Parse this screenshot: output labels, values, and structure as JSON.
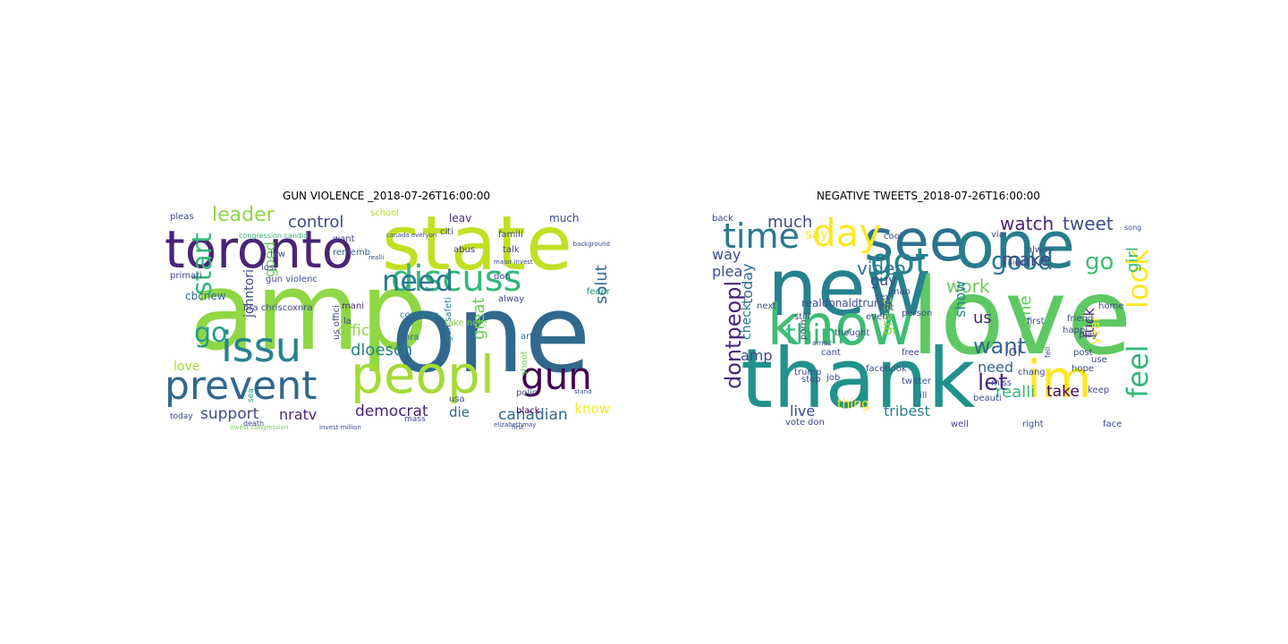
{
  "panels": [
    {
      "title": "GUN VIOLENCE _2018-07-26T16:00:00",
      "words": [
        {
          "text": "amp",
          "color": "#8fd744"
        },
        {
          "text": "one",
          "color": "#31688e"
        },
        {
          "text": "state",
          "color": "#c2df23"
        },
        {
          "text": "toronto",
          "color": "#482475"
        },
        {
          "text": "peopl",
          "color": "#a5db36"
        },
        {
          "text": "prevent",
          "color": "#31688e"
        },
        {
          "text": "discuss",
          "color": "#35b779"
        },
        {
          "text": "issu",
          "color": "#26828e"
        },
        {
          "text": "gun",
          "color": "#440154"
        },
        {
          "text": "need",
          "color": "#2a788e"
        },
        {
          "text": "start",
          "color": "#35b779"
        },
        {
          "text": "go",
          "color": "#1f9e89"
        },
        {
          "text": "leader",
          "color": "#8fd744"
        },
        {
          "text": "control",
          "color": "#3e4a89"
        },
        {
          "text": "good",
          "color": "#6ece58"
        },
        {
          "text": "support",
          "color": "#3e4a89"
        },
        {
          "text": "nratv",
          "color": "#482878"
        },
        {
          "text": "democrat",
          "color": "#482475"
        },
        {
          "text": "canadian",
          "color": "#31688e"
        },
        {
          "text": "solut",
          "color": "#31688e"
        },
        {
          "text": "great",
          "color": "#6ece58"
        },
        {
          "text": "dloesch",
          "color": "#26828e"
        },
        {
          "text": "offic",
          "color": "#8fd744"
        },
        {
          "text": "love",
          "color": "#a5db36"
        },
        {
          "text": "know",
          "color": "#fde725"
        },
        {
          "text": "die",
          "color": "#31688e"
        },
        {
          "text": "johntori",
          "color": "#3e4a89"
        },
        {
          "text": "cbcnew",
          "color": "#31688e"
        },
        {
          "text": "pleas",
          "color": "#3e4a89"
        },
        {
          "text": "primari",
          "color": "#3e4a89"
        },
        {
          "text": "school",
          "color": "#b5de2b"
        },
        {
          "text": "much",
          "color": "#3e4a89"
        },
        {
          "text": "leav",
          "color": "#482878"
        },
        {
          "text": "citi",
          "color": "#3e4a89"
        },
        {
          "text": "abus",
          "color": "#443983"
        },
        {
          "text": "want",
          "color": "#443983"
        },
        {
          "text": "famili",
          "color": "#3e4a89"
        },
        {
          "text": "law",
          "color": "#3e4a89"
        },
        {
          "text": "lost",
          "color": "#3e4a89"
        },
        {
          "text": "gun violenc",
          "color": "#3e4a89"
        },
        {
          "text": "rememb",
          "color": "#31688e"
        },
        {
          "text": "nra chriscoxnra",
          "color": "#3e4a89"
        },
        {
          "text": "mani",
          "color": "#482878"
        },
        {
          "text": "la",
          "color": "#3e4a89"
        },
        {
          "text": "commun",
          "color": "#26828e"
        },
        {
          "text": "nra",
          "color": "#31688e"
        },
        {
          "text": "us offici",
          "color": "#3e4a89"
        },
        {
          "text": "gun safeti",
          "color": "#26828e"
        },
        {
          "text": "articl",
          "color": "#31688e"
        },
        {
          "text": "alway",
          "color": "#3e4a89"
        },
        {
          "text": "feder",
          "color": "#1f9e89"
        },
        {
          "text": "take note",
          "color": "#8fd744"
        },
        {
          "text": "usa",
          "color": "#3e4a89"
        },
        {
          "text": "polic",
          "color": "#3e4a89"
        },
        {
          "text": "black",
          "color": "#440154"
        },
        {
          "text": "shoot",
          "color": "#6ece58"
        },
        {
          "text": "talk",
          "color": "#3e4a89"
        },
        {
          "text": "don",
          "color": "#3e4a89"
        },
        {
          "text": "today",
          "color": "#3e4a89"
        },
        {
          "text": "mass",
          "color": "#3e4a89"
        },
        {
          "text": "death",
          "color": "#3e4a89"
        },
        {
          "text": "sea",
          "color": "#1f9e89"
        },
        {
          "text": "congression candid",
          "color": "#35b779"
        },
        {
          "text": "invest congression",
          "color": "#6ece58"
        },
        {
          "text": "canada everyon",
          "color": "#3e4a89"
        },
        {
          "text": "background",
          "color": "#3e4a89"
        },
        {
          "text": "invest million",
          "color": "#3e4a89"
        },
        {
          "text": "major invest",
          "color": "#3e4a89"
        },
        {
          "text": "elizabethmay",
          "color": "#3e4a89"
        },
        {
          "text": "first",
          "color": "#3e4a89"
        },
        {
          "text": "realli",
          "color": "#3e4a89"
        },
        {
          "text": "stand",
          "color": "#3e4a89"
        }
      ]
    },
    {
      "title": "NEGATIVE TWEETS_2018-07-26T16:00:00",
      "words": [
        {
          "text": "love",
          "color": "#5ec962"
        },
        {
          "text": "thank",
          "color": "#21918c"
        },
        {
          "text": "new",
          "color": "#26828e"
        },
        {
          "text": "one",
          "color": "#287c8e"
        },
        {
          "text": "see",
          "color": "#2c728e"
        },
        {
          "text": "know",
          "color": "#3fbc73"
        },
        {
          "text": "im",
          "color": "#fde725"
        },
        {
          "text": "day",
          "color": "#fde725"
        },
        {
          "text": "time",
          "color": "#2a788e"
        },
        {
          "text": "got",
          "color": "#26828e"
        },
        {
          "text": "feel",
          "color": "#35b779"
        },
        {
          "text": "look",
          "color": "#fde725"
        },
        {
          "text": "dontpeopl",
          "color": "#482878"
        },
        {
          "text": "think",
          "color": "#35b779"
        },
        {
          "text": "good",
          "color": "#2a788e"
        },
        {
          "text": "go",
          "color": "#3fbc73"
        },
        {
          "text": "want",
          "color": "#31688e"
        },
        {
          "text": "let",
          "color": "#482878"
        },
        {
          "text": "watch",
          "color": "#482475"
        },
        {
          "text": "tweet",
          "color": "#3e4a89"
        },
        {
          "text": "make",
          "color": "#3e4a89"
        },
        {
          "text": "girl",
          "color": "#35b779"
        },
        {
          "text": "video",
          "color": "#2a788e"
        },
        {
          "text": "guy",
          "color": "#3e4a89"
        },
        {
          "text": "work",
          "color": "#6ece58"
        },
        {
          "text": "show",
          "color": "#26828e"
        },
        {
          "text": "great",
          "color": "#8fd744"
        },
        {
          "text": "us",
          "color": "#482878"
        },
        {
          "text": "need",
          "color": "#31688e"
        },
        {
          "text": "come",
          "color": "#5ec962"
        },
        {
          "text": "lol",
          "color": "#3e4a89"
        },
        {
          "text": "fuck",
          "color": "#482878"
        },
        {
          "text": "realli",
          "color": "#35b779"
        },
        {
          "text": "take",
          "color": "#440154"
        },
        {
          "text": "year",
          "color": "#fde725"
        },
        {
          "text": "much",
          "color": "#3e4a89"
        },
        {
          "text": "way",
          "color": "#3e4a89"
        },
        {
          "text": "plea",
          "color": "#3e4a89"
        },
        {
          "text": "say",
          "color": "#fde725"
        },
        {
          "text": "today",
          "color": "#31688e"
        },
        {
          "text": "check",
          "color": "#26828e"
        },
        {
          "text": "amp",
          "color": "#3e4a89"
        },
        {
          "text": "live",
          "color": "#3e4a89"
        },
        {
          "text": "tribest",
          "color": "#26828e"
        },
        {
          "text": "thing",
          "color": "#fde725"
        },
        {
          "text": "realdonaldtrump",
          "color": "#3e4a89"
        },
        {
          "text": "back",
          "color": "#3e4a89"
        },
        {
          "text": "next",
          "color": "#3e4a89"
        },
        {
          "text": "still",
          "color": "#3e4a89"
        },
        {
          "text": "alway",
          "color": "#3e4a89"
        },
        {
          "text": "cool",
          "color": "#3e4a89"
        },
        {
          "text": "via",
          "color": "#3e4a89"
        },
        {
          "text": "lmao",
          "color": "#3e4a89"
        },
        {
          "text": "even",
          "color": "#3e4a89"
        },
        {
          "text": "hot",
          "color": "#3e4a89"
        },
        {
          "text": "sex",
          "color": "#3e4a89"
        },
        {
          "text": "person",
          "color": "#3e4a89"
        },
        {
          "text": "miss",
          "color": "#3e4a89"
        },
        {
          "text": "beauti",
          "color": "#3e4a89"
        },
        {
          "text": "chang",
          "color": "#3e4a89"
        },
        {
          "text": "keep",
          "color": "#3e4a89"
        },
        {
          "text": "hope",
          "color": "#3e4a89"
        },
        {
          "text": "use",
          "color": "#3e4a89"
        },
        {
          "text": "post",
          "color": "#3e4a89"
        },
        {
          "text": "happi",
          "color": "#3e4a89"
        },
        {
          "text": "friend",
          "color": "#3e4a89"
        },
        {
          "text": "play",
          "color": "#3e4a89"
        },
        {
          "text": "home",
          "color": "#3e4a89"
        },
        {
          "text": "first",
          "color": "#3e4a89"
        },
        {
          "text": "facebook",
          "color": "#3e4a89"
        },
        {
          "text": "twitter",
          "color": "#3e4a89"
        },
        {
          "text": "trump",
          "color": "#3e4a89"
        },
        {
          "text": "stop",
          "color": "#3e4a89"
        },
        {
          "text": "job",
          "color": "#3e4a89"
        },
        {
          "text": "cant",
          "color": "#3e4a89"
        },
        {
          "text": "thought",
          "color": "#3e4a89"
        },
        {
          "text": "porn",
          "color": "#3e4a89"
        },
        {
          "text": "vote",
          "color": "#3e4a89"
        },
        {
          "text": "don",
          "color": "#3e4a89"
        },
        {
          "text": "ill",
          "color": "#3e4a89"
        },
        {
          "text": "well",
          "color": "#3e4a89"
        },
        {
          "text": "right",
          "color": "#3e4a89"
        },
        {
          "text": "face",
          "color": "#3e4a89"
        },
        {
          "text": "free",
          "color": "#3e4a89"
        },
        {
          "text": "sign",
          "color": "#3e4a89"
        },
        {
          "text": "amaz",
          "color": "#3e4a89"
        },
        {
          "text": "fell",
          "color": "#3e4a89"
        },
        {
          "text": "song",
          "color": "#3e4a89"
        }
      ]
    }
  ]
}
